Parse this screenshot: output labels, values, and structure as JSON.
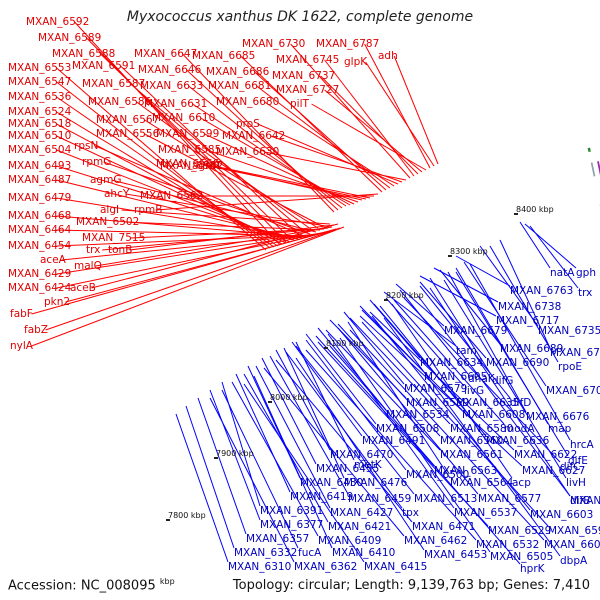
{
  "title": "Myxococcus xanthus DK 1622, complete genome",
  "footer": {
    "accession": "Accession: NC_008095",
    "accession_unit": "kbp",
    "topology": "Topology: circular; Length: 9,139,763 bp; Genes: 7,410"
  },
  "colors": {
    "forward": "#ff0000",
    "reverse": "#0000ff",
    "backbone": "#8a8a8a",
    "marker": "#2a8a2a",
    "text_forward": "#dd0000",
    "text_reverse": "#0000bb"
  },
  "ticks": [
    "8400 kbp",
    "8300 kbp",
    "8200 kbp",
    "8100 kbp",
    "8000 kbp",
    "7900 kbp",
    "7800 kbp"
  ],
  "labels_forward": [
    "MXAN_6592",
    "MXAN_6589",
    "MXAN_6588",
    "MXAN_6553",
    "MXAN_6591",
    "MXAN_6547",
    "MXAN_6587",
    "MXAN_6536",
    "MXAN_6524",
    "MXAN_6586",
    "MXAN_6518",
    "MXAN_6567",
    "MXAN_6510",
    "MXAN_6556",
    "MXAN_6504",
    "rpsN",
    "MXAN_6493",
    "rpmG",
    "MXAN_6487",
    "agmG",
    "ahcY",
    "MXAN_6479",
    "algI",
    "MXAN_6468",
    "MXAN_6502",
    "MXAN_6464",
    "MXAN_7515",
    "MXAN_6454",
    "trx",
    "tonB",
    "aceA",
    "malQ",
    "MXAN_6429",
    "MXAN_6424",
    "aceB",
    "pkn2",
    "fabF",
    "fabZ",
    "nylA",
    "MXAN_6647",
    "MXAN_6646",
    "MXAN_6633",
    "MXAN_6631",
    "MXAN_6610",
    "MXAN_6599",
    "MXAN_6585",
    "MXAN_6566",
    "MXAN_6582",
    "agmT",
    "MXAN_6562",
    "rpmB",
    "MXAN_6685",
    "MXAN_6686",
    "MXAN_6681",
    "MXAN_6680",
    "proS",
    "MXAN_6642",
    "MXAN_6630",
    "MXAN_6730",
    "MXAN_6745",
    "MXAN_6737",
    "MXAN_6727",
    "pilT",
    "MXAN_6787",
    "glpK",
    "adh"
  ],
  "labels_reverse": [
    "natA",
    "gph",
    "MXAN_6763",
    "trx",
    "MXAN_6738",
    "MXAN_6717",
    "MXAN_6735",
    "MXAN_6679",
    "MXAN_6689",
    "MXAN_6751",
    "tam",
    "MXAN_6634",
    "MXAN_6690",
    "rpoE",
    "MXAN_6605",
    "dnaK",
    "difG",
    "MXAN_6579",
    "livG",
    "MXAN_6709",
    "MXAN_6559",
    "MXAN_6635",
    "difD",
    "MXAN_6534",
    "MXAN_6608",
    "MXAN_6676",
    "MXAN_6508",
    "MXAN_6580",
    "modA",
    "map",
    "MXAN_6491",
    "MXAN_6560",
    "MXAN_6636",
    "hrcA",
    "MXAN_6470",
    "MXAN_6561",
    "MXAN_6622",
    "difE",
    "MXAN_6455",
    "metK",
    "MXAN_6563",
    "MXAN_6627",
    "difC",
    "MXAN_6430",
    "MXAN_6476",
    "MXAN_6500",
    "MXAN_6564",
    "acp",
    "livH",
    "MXAN_6419",
    "MXAN_6459",
    "MXAN_6513",
    "MXAN_6577",
    "difB",
    "MXAN_6391",
    "MXAN_6427",
    "tpx",
    "MXAN_6537",
    "MXAN_6603",
    "MXAN_6652",
    "MXAN_6377",
    "MXAN_6421",
    "MXAN_6471",
    "MXAN_6529",
    "MXAN_6596",
    "MXAN_6357",
    "MXAN_6409",
    "MXAN_6462",
    "MXAN_6532",
    "MXAN_6601",
    "MXAN_6332",
    "fucA",
    "MXAN_6410",
    "MXAN_6453",
    "MXAN_6505",
    "dbpA",
    "MXAN_6310",
    "MXAN_6362",
    "MXAN_6415",
    "hprK"
  ]
}
